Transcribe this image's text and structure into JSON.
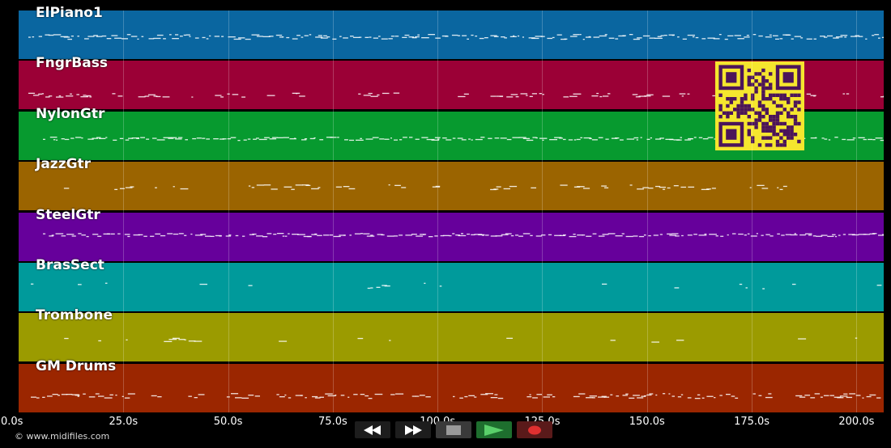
{
  "tracks": [
    {
      "name": "ElPiano1",
      "color": "#0a66a0"
    },
    {
      "name": "FngrBass",
      "color": "#9b0036"
    },
    {
      "name": "NylonGtr",
      "color": "#079a2f"
    },
    {
      "name": "JazzGtr",
      "color": "#9b6400"
    },
    {
      "name": "SteelGtr",
      "color": "#66009b"
    },
    {
      "name": "BrasSect",
      "color": "#009a9b"
    },
    {
      "name": "Trombone",
      "color": "#9b9b00"
    },
    {
      "name": "GM Drums",
      "color": "#9b2600"
    }
  ],
  "timeline": {
    "max_seconds": 206.5,
    "ticks": [
      "0.0s",
      "25.0s",
      "50.0s",
      "75.0s",
      "100.0s",
      "125.0s",
      "150.0s",
      "175.0s",
      "200.0s"
    ],
    "tick_values": [
      0,
      25,
      50,
      75,
      100,
      125,
      150,
      175,
      200
    ]
  },
  "footer": {
    "copyright": "© www.midifiles.com"
  },
  "transport": {
    "rewind": "rewind-icon",
    "fast_forward": "fast-forward-icon",
    "stop": "stop-icon",
    "play": "play-icon",
    "record": "record-icon"
  },
  "colors": {
    "qr_bg": "#f5e62e",
    "qr_fg": "#4b145a",
    "note": "#ffffff"
  }
}
